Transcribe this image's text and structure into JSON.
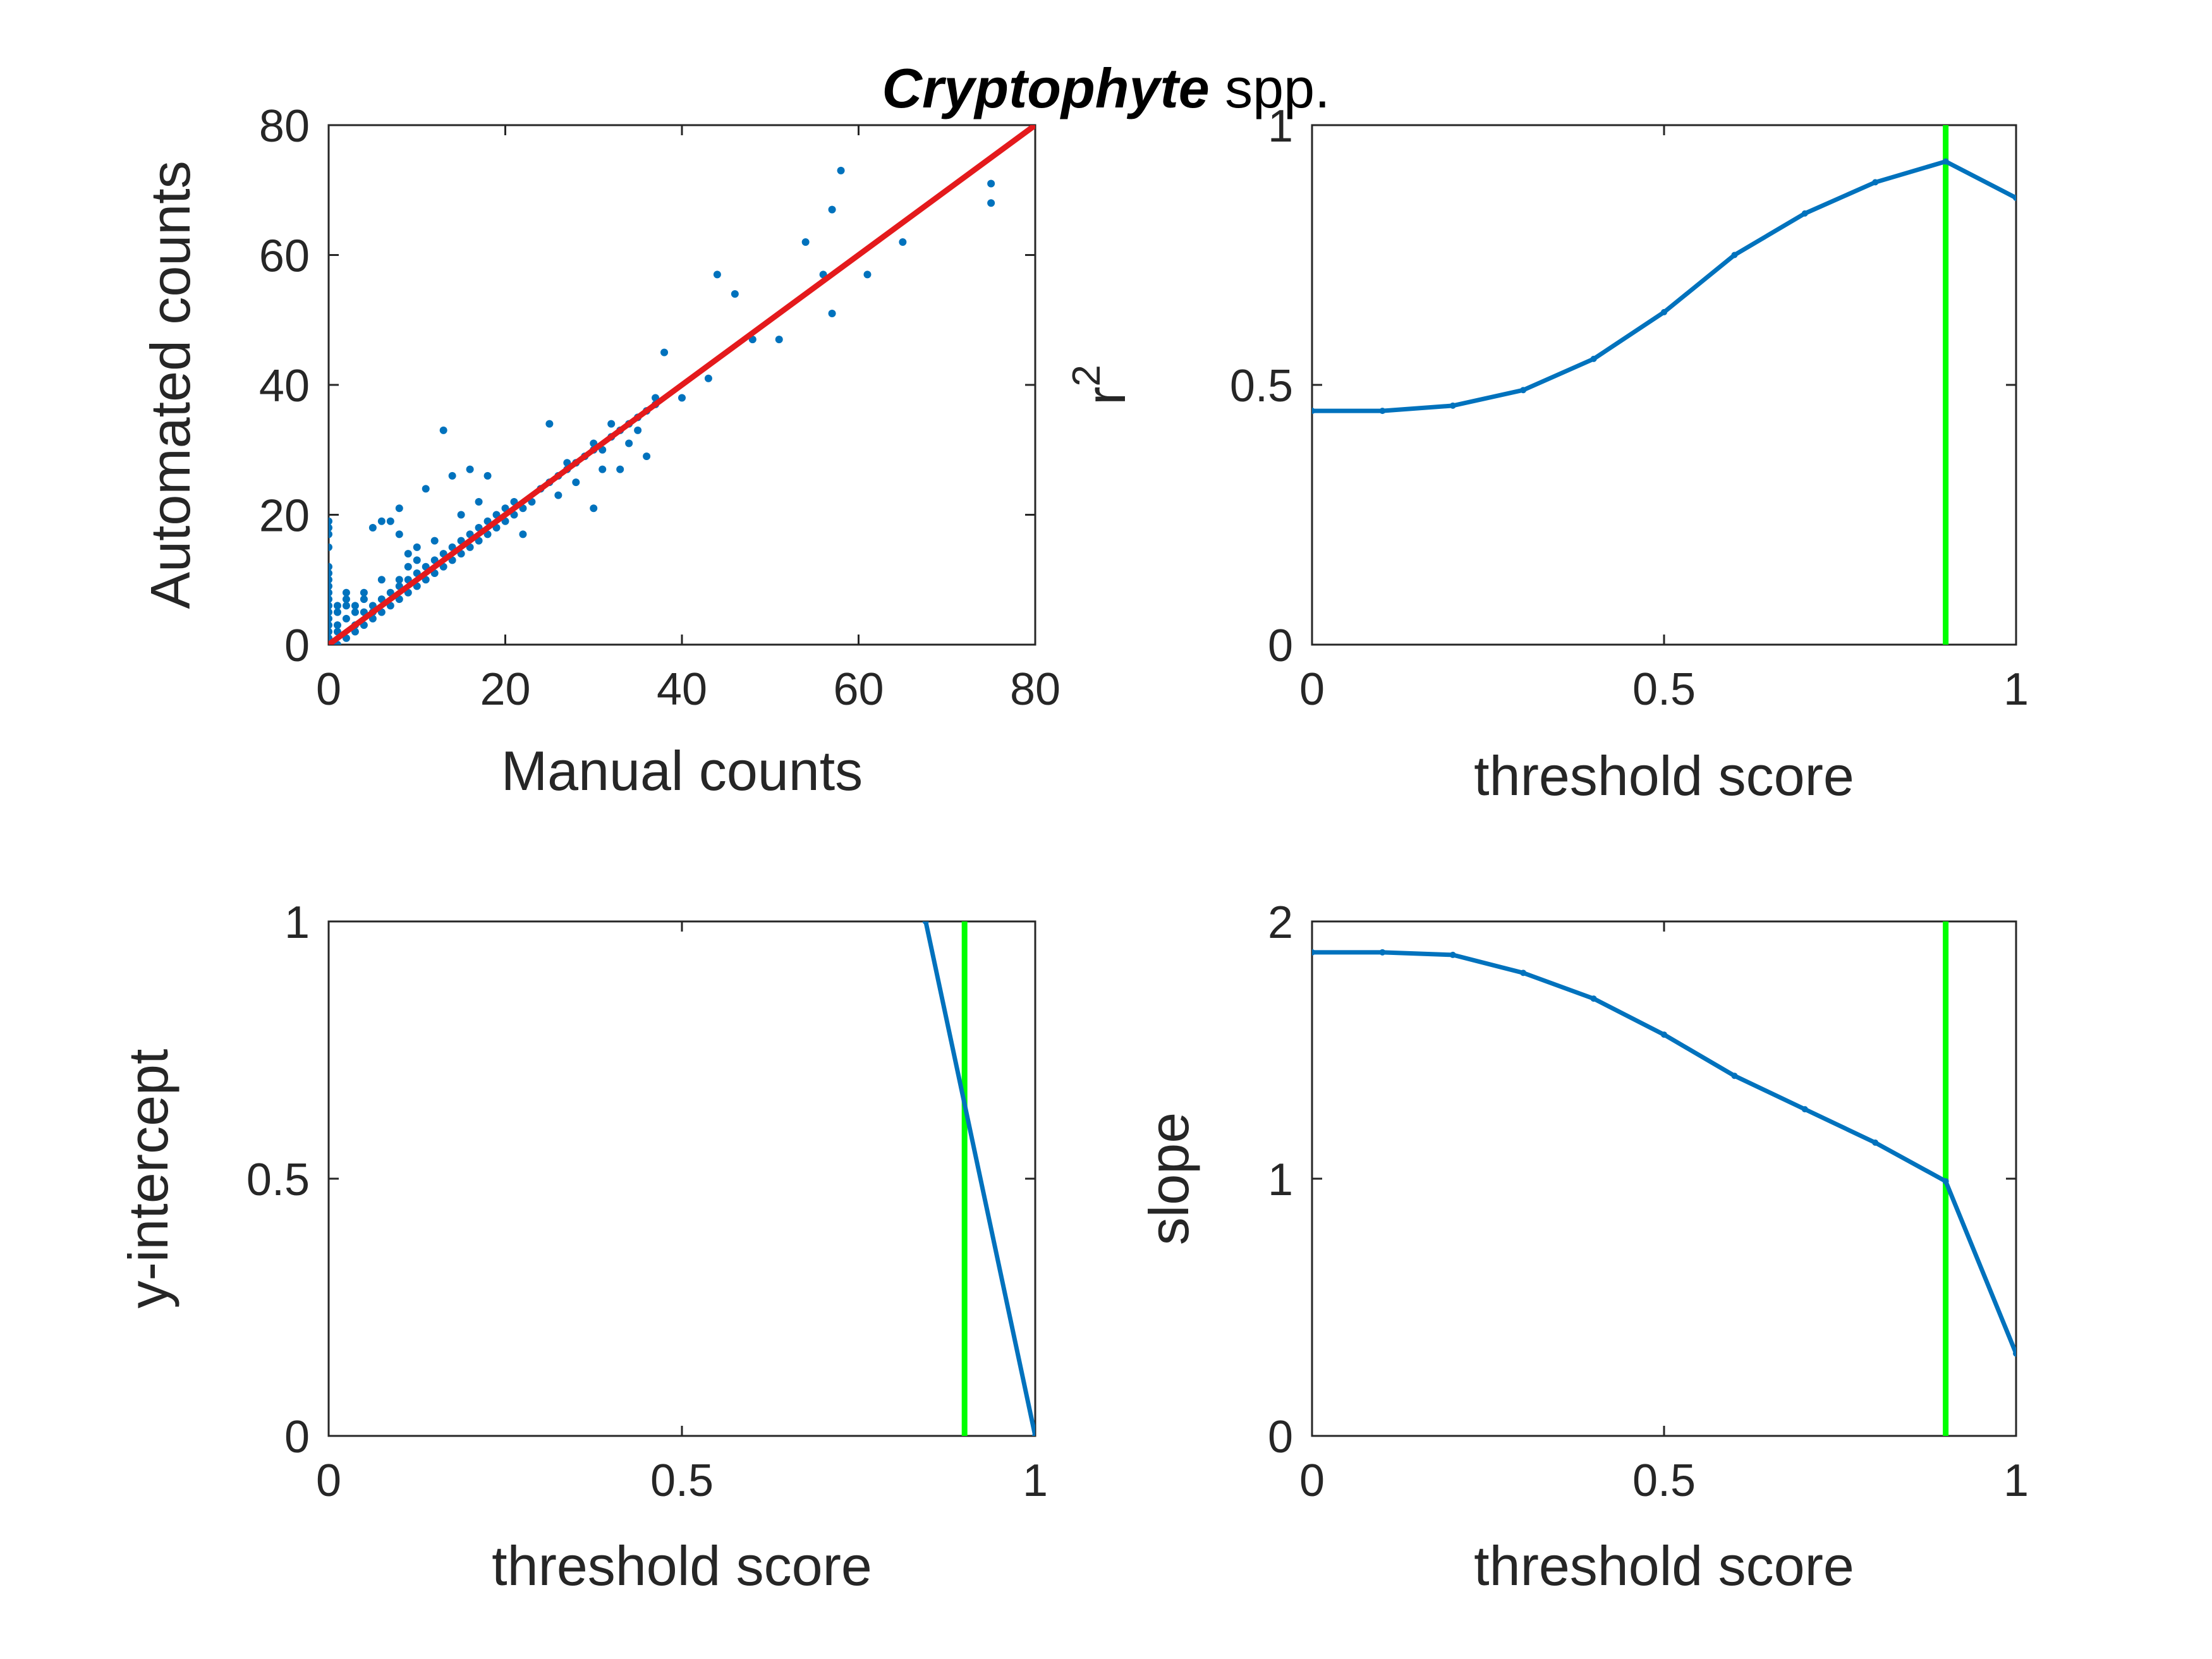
{
  "figure": {
    "title_italic": "Cryptophyte",
    "title_rest": " spp."
  },
  "colors": {
    "series": "#0072BD",
    "fit_line": "#E41A1C",
    "threshold_line": "#00FF00",
    "axis": "#262626"
  },
  "chart_data": [
    {
      "id": "scatter",
      "type": "scatter",
      "xlabel": "Manual counts",
      "ylabel": "Automated counts",
      "xlim": [
        0,
        80
      ],
      "ylim": [
        0,
        80
      ],
      "xticks": [
        0,
        20,
        40,
        60,
        80
      ],
      "yticks": [
        0,
        20,
        40,
        60,
        80
      ],
      "xtick_labels": [
        "0",
        "20",
        "40",
        "60",
        "80"
      ],
      "ytick_labels": [
        "0",
        "20",
        "40",
        "60",
        "80"
      ],
      "points": [
        [
          0,
          0
        ],
        [
          0,
          1
        ],
        [
          0,
          2
        ],
        [
          0,
          3
        ],
        [
          0,
          4
        ],
        [
          0,
          5
        ],
        [
          0,
          6
        ],
        [
          0,
          7
        ],
        [
          0,
          8
        ],
        [
          0,
          9
        ],
        [
          0,
          10
        ],
        [
          0,
          11
        ],
        [
          0,
          12
        ],
        [
          0,
          15
        ],
        [
          0,
          17
        ],
        [
          0,
          18
        ],
        [
          0,
          19
        ],
        [
          1,
          0
        ],
        [
          1,
          2
        ],
        [
          1,
          3
        ],
        [
          1,
          5
        ],
        [
          1,
          6
        ],
        [
          2,
          1
        ],
        [
          2,
          4
        ],
        [
          2,
          6
        ],
        [
          2,
          7
        ],
        [
          2,
          8
        ],
        [
          3,
          2
        ],
        [
          3,
          3
        ],
        [
          3,
          5
        ],
        [
          3,
          6
        ],
        [
          4,
          3
        ],
        [
          4,
          5
        ],
        [
          4,
          7
        ],
        [
          4,
          8
        ],
        [
          5,
          4
        ],
        [
          5,
          5
        ],
        [
          5,
          6
        ],
        [
          5,
          18
        ],
        [
          6,
          5
        ],
        [
          6,
          7
        ],
        [
          6,
          10
        ],
        [
          6,
          19
        ],
        [
          7,
          6
        ],
        [
          7,
          8
        ],
        [
          7,
          19
        ],
        [
          8,
          7
        ],
        [
          8,
          9
        ],
        [
          8,
          10
        ],
        [
          8,
          17
        ],
        [
          8,
          21
        ],
        [
          9,
          8
        ],
        [
          9,
          10
        ],
        [
          9,
          12
        ],
        [
          9,
          14
        ],
        [
          10,
          9
        ],
        [
          10,
          11
        ],
        [
          10,
          13
        ],
        [
          10,
          15
        ],
        [
          11,
          10
        ],
        [
          11,
          12
        ],
        [
          11,
          24
        ],
        [
          12,
          11
        ],
        [
          12,
          13
        ],
        [
          12,
          16
        ],
        [
          13,
          12
        ],
        [
          13,
          14
        ],
        [
          13,
          33
        ],
        [
          14,
          13
        ],
        [
          14,
          15
        ],
        [
          14,
          26
        ],
        [
          15,
          14
        ],
        [
          15,
          16
        ],
        [
          15,
          20
        ],
        [
          16,
          15
        ],
        [
          16,
          17
        ],
        [
          16,
          27
        ],
        [
          17,
          16
        ],
        [
          17,
          18
        ],
        [
          17,
          22
        ],
        [
          18,
          17
        ],
        [
          18,
          19
        ],
        [
          18,
          26
        ],
        [
          19,
          18
        ],
        [
          19,
          20
        ],
        [
          20,
          19
        ],
        [
          20,
          21
        ],
        [
          21,
          20
        ],
        [
          21,
          22
        ],
        [
          22,
          21
        ],
        [
          22,
          17
        ],
        [
          23,
          22
        ],
        [
          24,
          24
        ],
        [
          25,
          25
        ],
        [
          25,
          34
        ],
        [
          26,
          26
        ],
        [
          26,
          23
        ],
        [
          27,
          27
        ],
        [
          27,
          28
        ],
        [
          28,
          28
        ],
        [
          28,
          25
        ],
        [
          29,
          29
        ],
        [
          30,
          30
        ],
        [
          30,
          31
        ],
        [
          30,
          21
        ],
        [
          31,
          30
        ],
        [
          31,
          27
        ],
        [
          32,
          32
        ],
        [
          32,
          34
        ],
        [
          33,
          33
        ],
        [
          33,
          27
        ],
        [
          34,
          34
        ],
        [
          34,
          31
        ],
        [
          35,
          35
        ],
        [
          35,
          33
        ],
        [
          36,
          36
        ],
        [
          36,
          29
        ],
        [
          37,
          37
        ],
        [
          37,
          38
        ],
        [
          38,
          45
        ],
        [
          40,
          38
        ],
        [
          43,
          41
        ],
        [
          44,
          57
        ],
        [
          46,
          54
        ],
        [
          48,
          47
        ],
        [
          51,
          47
        ],
        [
          54,
          62
        ],
        [
          56,
          57
        ],
        [
          57,
          51
        ],
        [
          57,
          67
        ],
        [
          58,
          73
        ],
        [
          61,
          57
        ],
        [
          65,
          62
        ],
        [
          75,
          68
        ],
        [
          75,
          71
        ]
      ],
      "fit_line": {
        "x": [
          0,
          80
        ],
        "y": [
          0,
          80
        ]
      }
    },
    {
      "id": "r2",
      "type": "line",
      "xlabel": "threshold score",
      "ylabel": "r",
      "ylabel_superscript": "2",
      "xlim": [
        0,
        1
      ],
      "ylim": [
        0,
        1
      ],
      "xticks": [
        0,
        0.5,
        1
      ],
      "yticks": [
        0,
        0.5,
        1
      ],
      "xtick_labels": [
        "0",
        "0.5",
        "1"
      ],
      "ytick_labels": [
        "0",
        "0.5",
        "1"
      ],
      "x": [
        0,
        0.1,
        0.2,
        0.3,
        0.4,
        0.5,
        0.6,
        0.7,
        0.8,
        0.9,
        1
      ],
      "y": [
        0.45,
        0.45,
        0.46,
        0.49,
        0.55,
        0.64,
        0.75,
        0.83,
        0.89,
        0.93,
        0.86
      ],
      "threshold_x": 0.9
    },
    {
      "id": "intercept",
      "type": "line",
      "xlabel": "threshold score",
      "ylabel": "y-intercept",
      "xlim": [
        0,
        1
      ],
      "ylim": [
        0,
        1
      ],
      "xticks": [
        0,
        0.5,
        1
      ],
      "yticks": [
        0,
        0.5,
        1
      ],
      "xtick_labels": [
        "0",
        "0.5",
        "1"
      ],
      "ytick_labels": [
        "0",
        "0.5",
        "1"
      ],
      "x": [
        0.845,
        1
      ],
      "y": [
        1,
        0
      ],
      "threshold_x": 0.9
    },
    {
      "id": "slope",
      "type": "line",
      "xlabel": "threshold score",
      "ylabel": "slope",
      "xlim": [
        0,
        1
      ],
      "ylim": [
        0,
        2
      ],
      "xticks": [
        0,
        0.5,
        1
      ],
      "yticks": [
        0,
        1,
        2
      ],
      "xtick_labels": [
        "0",
        "0.5",
        "1"
      ],
      "ytick_labels": [
        "0",
        "1",
        "2"
      ],
      "x": [
        0,
        0.1,
        0.2,
        0.3,
        0.4,
        0.5,
        0.6,
        0.7,
        0.8,
        0.9,
        1
      ],
      "y": [
        1.88,
        1.88,
        1.87,
        1.8,
        1.7,
        1.56,
        1.4,
        1.27,
        1.14,
        0.99,
        0.32
      ],
      "threshold_x": 0.9
    }
  ]
}
